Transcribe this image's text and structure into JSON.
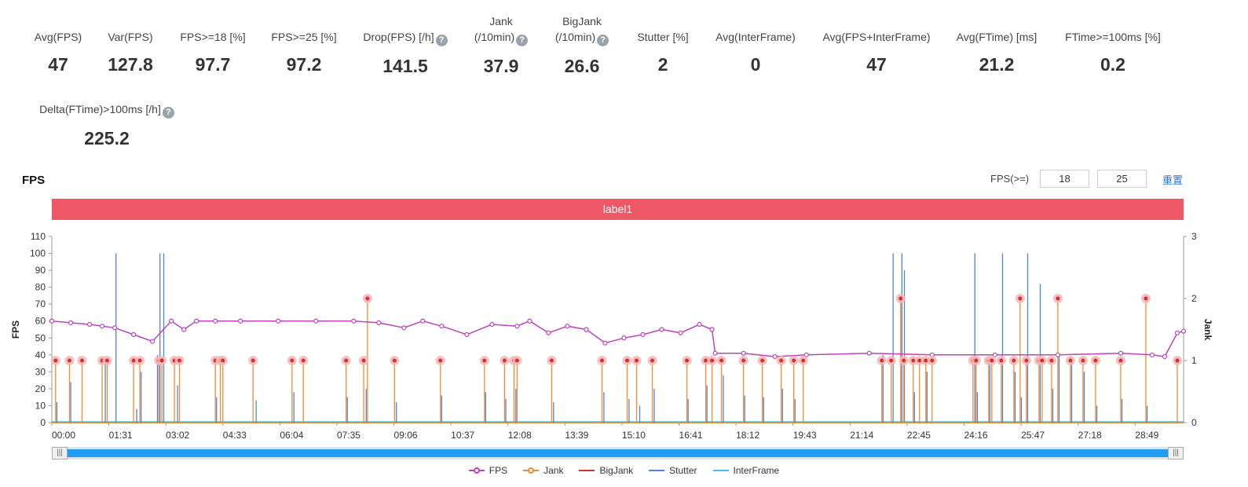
{
  "stats": [
    {
      "label": "Avg(FPS)",
      "value": "47",
      "help": false
    },
    {
      "label": "Var(FPS)",
      "value": "127.8",
      "help": false
    },
    {
      "label": "FPS>=18 [%]",
      "value": "97.7",
      "help": false
    },
    {
      "label": "FPS>=25 [%]",
      "value": "97.2",
      "help": false
    },
    {
      "label": "Drop(FPS) [/h]",
      "value": "141.5",
      "help": true
    },
    {
      "label": "Jank\n(/10min)",
      "value": "37.9",
      "help": true
    },
    {
      "label": "BigJank\n(/10min)",
      "value": "26.6",
      "help": true
    },
    {
      "label": "Stutter [%]",
      "value": "2",
      "help": false
    },
    {
      "label": "Avg(InterFrame)",
      "value": "0",
      "help": false
    },
    {
      "label": "Avg(FPS+InterFrame)",
      "value": "47",
      "help": false
    },
    {
      "label": "Avg(FTime) [ms]",
      "value": "21.2",
      "help": false
    },
    {
      "label": "FTime>=100ms [%]",
      "value": "0.2",
      "help": false
    },
    {
      "label": "Delta(FTime)>100ms [/h]",
      "value": "225.2",
      "help": true
    }
  ],
  "help_glyph": "?",
  "chart_section": {
    "title": "FPS",
    "filter_label": "FPS(>=)",
    "filter_values": [
      "18",
      "25"
    ],
    "reset_label": "重置",
    "label_bar": "label1"
  },
  "colors": {
    "fps": "#bb44bb",
    "jank": "#f08a35",
    "bigjank": "#d43030",
    "stutter": "#4f86d0",
    "interframe": "#3fc6e0",
    "label_bar": "#ee5766",
    "slider": "#1f9df0"
  },
  "chart_data": {
    "type": "line",
    "title": "",
    "xlabel": "",
    "ylabel": "FPS",
    "y2label": "Jank",
    "ylim": [
      0,
      110
    ],
    "y2lim": [
      0,
      3
    ],
    "yticks": [
      0,
      10,
      20,
      30,
      40,
      50,
      60,
      70,
      80,
      90,
      100,
      110
    ],
    "y2ticks": [
      0,
      1,
      2,
      3
    ],
    "xlim_seconds": [
      0,
      1800
    ],
    "xticks": [
      "00:00",
      "01:31",
      "03:02",
      "04:33",
      "06:04",
      "07:35",
      "09:06",
      "10:37",
      "12:08",
      "13:39",
      "15:10",
      "16:41",
      "18:12",
      "19:43",
      "21:14",
      "22:45",
      "24:16",
      "25:47",
      "27:18",
      "28:49"
    ],
    "legend_position": "bottom",
    "legend": [
      "FPS",
      "Jank",
      "BigJank",
      "Stutter",
      "InterFrame"
    ],
    "fps_series": {
      "name": "FPS",
      "t": [
        0,
        30,
        60,
        80,
        100,
        130,
        160,
        190,
        210,
        230,
        260,
        300,
        360,
        420,
        480,
        520,
        560,
        590,
        620,
        660,
        700,
        740,
        760,
        790,
        820,
        850,
        880,
        910,
        940,
        970,
        1000,
        1030,
        1050,
        1055,
        1100,
        1150,
        1200,
        1300,
        1400,
        1500,
        1600,
        1700,
        1750,
        1770,
        1790,
        1800
      ],
      "fps": [
        60,
        59,
        58,
        57,
        56,
        52,
        48,
        60,
        55,
        60,
        60,
        60,
        60,
        60,
        60,
        59,
        56,
        60,
        57,
        52,
        58,
        57,
        60,
        53,
        57,
        55,
        47,
        50,
        52,
        55,
        53,
        58,
        55,
        41,
        41,
        39,
        40,
        41,
        40,
        40,
        40,
        41,
        40,
        39,
        53,
        54
      ]
    },
    "jank_events": {
      "name": "Jank",
      "t": [
        6,
        28,
        48,
        80,
        88,
        130,
        140,
        170,
        175,
        195,
        203,
        260,
        268,
        272,
        320,
        382,
        400,
        468,
        496,
        502,
        545,
        618,
        688,
        720,
        735,
        740,
        795,
        875,
        915,
        930,
        955,
        1010,
        1040,
        1050,
        1065,
        1100,
        1130,
        1160,
        1180,
        1195,
        1320,
        1335,
        1350,
        1355,
        1370,
        1380,
        1390,
        1400,
        1465,
        1470,
        1490,
        1495,
        1510,
        1530,
        1540,
        1550,
        1570,
        1575,
        1590,
        1600,
        1620,
        1640,
        1660,
        1700,
        1740,
        1790
      ],
      "jank": [
        1,
        1,
        1,
        1,
        1,
        1,
        1,
        1,
        1,
        1,
        1,
        1,
        1,
        1,
        1,
        1,
        1,
        1,
        1,
        2,
        1,
        1,
        1,
        1,
        1,
        1,
        1,
        1,
        1,
        1,
        1,
        1,
        1,
        1,
        1,
        1,
        1,
        1,
        1,
        1,
        1,
        1,
        2,
        1,
        1,
        1,
        1,
        1,
        1,
        1,
        1,
        1,
        1,
        1,
        2,
        1,
        1,
        1,
        1,
        2,
        1,
        1,
        1,
        1,
        2,
        1
      ]
    },
    "stutter_events": {
      "name": "Stutter",
      "t": [
        8,
        30,
        85,
        102,
        135,
        142,
        168,
        172,
        178,
        200,
        262,
        325,
        385,
        470,
        500,
        548,
        620,
        690,
        722,
        738,
        798,
        878,
        918,
        935,
        958,
        1012,
        1042,
        1068,
        1102,
        1132,
        1162,
        1182,
        1322,
        1338,
        1352,
        1356,
        1372,
        1392,
        1468,
        1472,
        1492,
        1512,
        1532,
        1542,
        1552,
        1572,
        1592,
        1602,
        1622,
        1642,
        1662,
        1702,
        1742
      ],
      "stutter": [
        12,
        24,
        38,
        100,
        8,
        30,
        40,
        100,
        100,
        22,
        15,
        13,
        18,
        15,
        20,
        12,
        16,
        18,
        14,
        20,
        12,
        18,
        14,
        10,
        20,
        14,
        22,
        28,
        16,
        15,
        20,
        14,
        40,
        100,
        100,
        90,
        18,
        30,
        100,
        18,
        35,
        100,
        30,
        15,
        100,
        82,
        20,
        40,
        38,
        30,
        10,
        14,
        10
      ]
    },
    "interframe_series": {
      "name": "InterFrame",
      "value": 0
    },
    "bigjank_series": {
      "name": "BigJank",
      "value": 0
    }
  }
}
